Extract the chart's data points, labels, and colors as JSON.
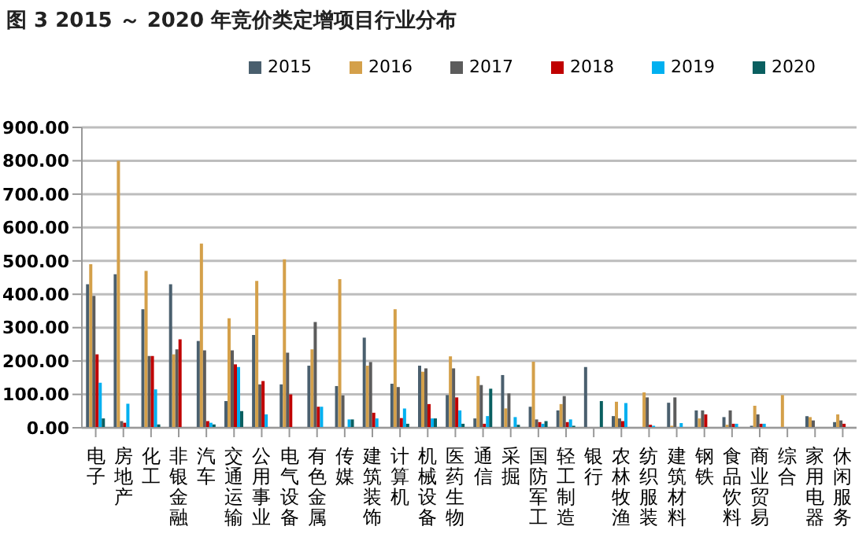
{
  "chart_data": {
    "type": "bar",
    "title": "图 3  2015 ～ 2020 年竞价类定增项目行业分布",
    "categories": [
      "电子",
      "房地产",
      "化工",
      "非银金融",
      "汽车",
      "交通运输",
      "公用事业",
      "电气设备",
      "有色金属",
      "传媒",
      "建筑装饰",
      "计算机",
      "机械设备",
      "医药生物",
      "通信",
      "采掘",
      "国防军工",
      "轻工制造",
      "银行",
      "农林牧渔",
      "纺织服装",
      "建筑材料",
      "钢铁",
      "食品饮料",
      "商业贸易",
      "综合",
      "家用电器",
      "休闲服务"
    ],
    "series": [
      {
        "name": "2015",
        "color": "#4a5f6e",
        "values": [
          430,
          460,
          355,
          430,
          260,
          80,
          278,
          130,
          186,
          125,
          270,
          132,
          186,
          98,
          28,
          158,
          63,
          52,
          182,
          35,
          null,
          75,
          52,
          32,
          6,
          null,
          35,
          17
        ]
      },
      {
        "name": "2016",
        "color": "#d4a04a",
        "values": [
          490,
          800,
          470,
          220,
          552,
          328,
          440,
          505,
          235,
          445,
          186,
          355,
          168,
          214,
          155,
          58,
          198,
          71,
          null,
          78,
          106,
          6,
          28,
          9,
          66,
          98,
          32,
          40
        ]
      },
      {
        "name": "2017",
        "color": "#5c5c5c",
        "values": [
          395,
          20,
          215,
          235,
          232,
          232,
          130,
          225,
          317,
          97,
          197,
          122,
          178,
          178,
          128,
          103,
          25,
          95,
          null,
          28,
          91,
          91,
          52,
          52,
          40,
          null,
          22,
          22
        ]
      },
      {
        "name": "2018",
        "color": "#c00000",
        "values": [
          220,
          15,
          215,
          265,
          20,
          190,
          140,
          100,
          63,
          null,
          45,
          29,
          71,
          91,
          12,
          null,
          17,
          17,
          null,
          20,
          9,
          null,
          40,
          12,
          12,
          null,
          null,
          12
        ]
      },
      {
        "name": "2019",
        "color": "#00b0f0",
        "values": [
          135,
          72,
          115,
          null,
          15,
          182,
          40,
          null,
          63,
          25,
          28,
          58,
          28,
          52,
          35,
          32,
          12,
          25,
          null,
          74,
          6,
          14,
          null,
          12,
          12,
          null,
          null,
          null
        ]
      },
      {
        "name": "2020",
        "color": "#0a5f60",
        "values": [
          28,
          null,
          10,
          null,
          10,
          50,
          null,
          null,
          null,
          25,
          null,
          12,
          28,
          12,
          117,
          9,
          20,
          6,
          80,
          null,
          null,
          null,
          null,
          null,
          null,
          null,
          null,
          null
        ]
      }
    ],
    "ylim": [
      0,
      900
    ],
    "yticks": [
      {
        "value": 0,
        "label": "0.00"
      },
      {
        "value": 100,
        "label": "100.00"
      },
      {
        "value": 200,
        "label": "200.00"
      },
      {
        "value": 300,
        "label": "300.00"
      },
      {
        "value": 400,
        "label": "400.00"
      },
      {
        "value": 500,
        "label": "500.00"
      },
      {
        "value": 600,
        "label": "600.00"
      },
      {
        "value": 700,
        "label": "700.00"
      },
      {
        "value": 800,
        "label": "800.00"
      },
      {
        "value": 900,
        "label": "900.00"
      }
    ],
    "grid": "y",
    "legend": "top right"
  }
}
